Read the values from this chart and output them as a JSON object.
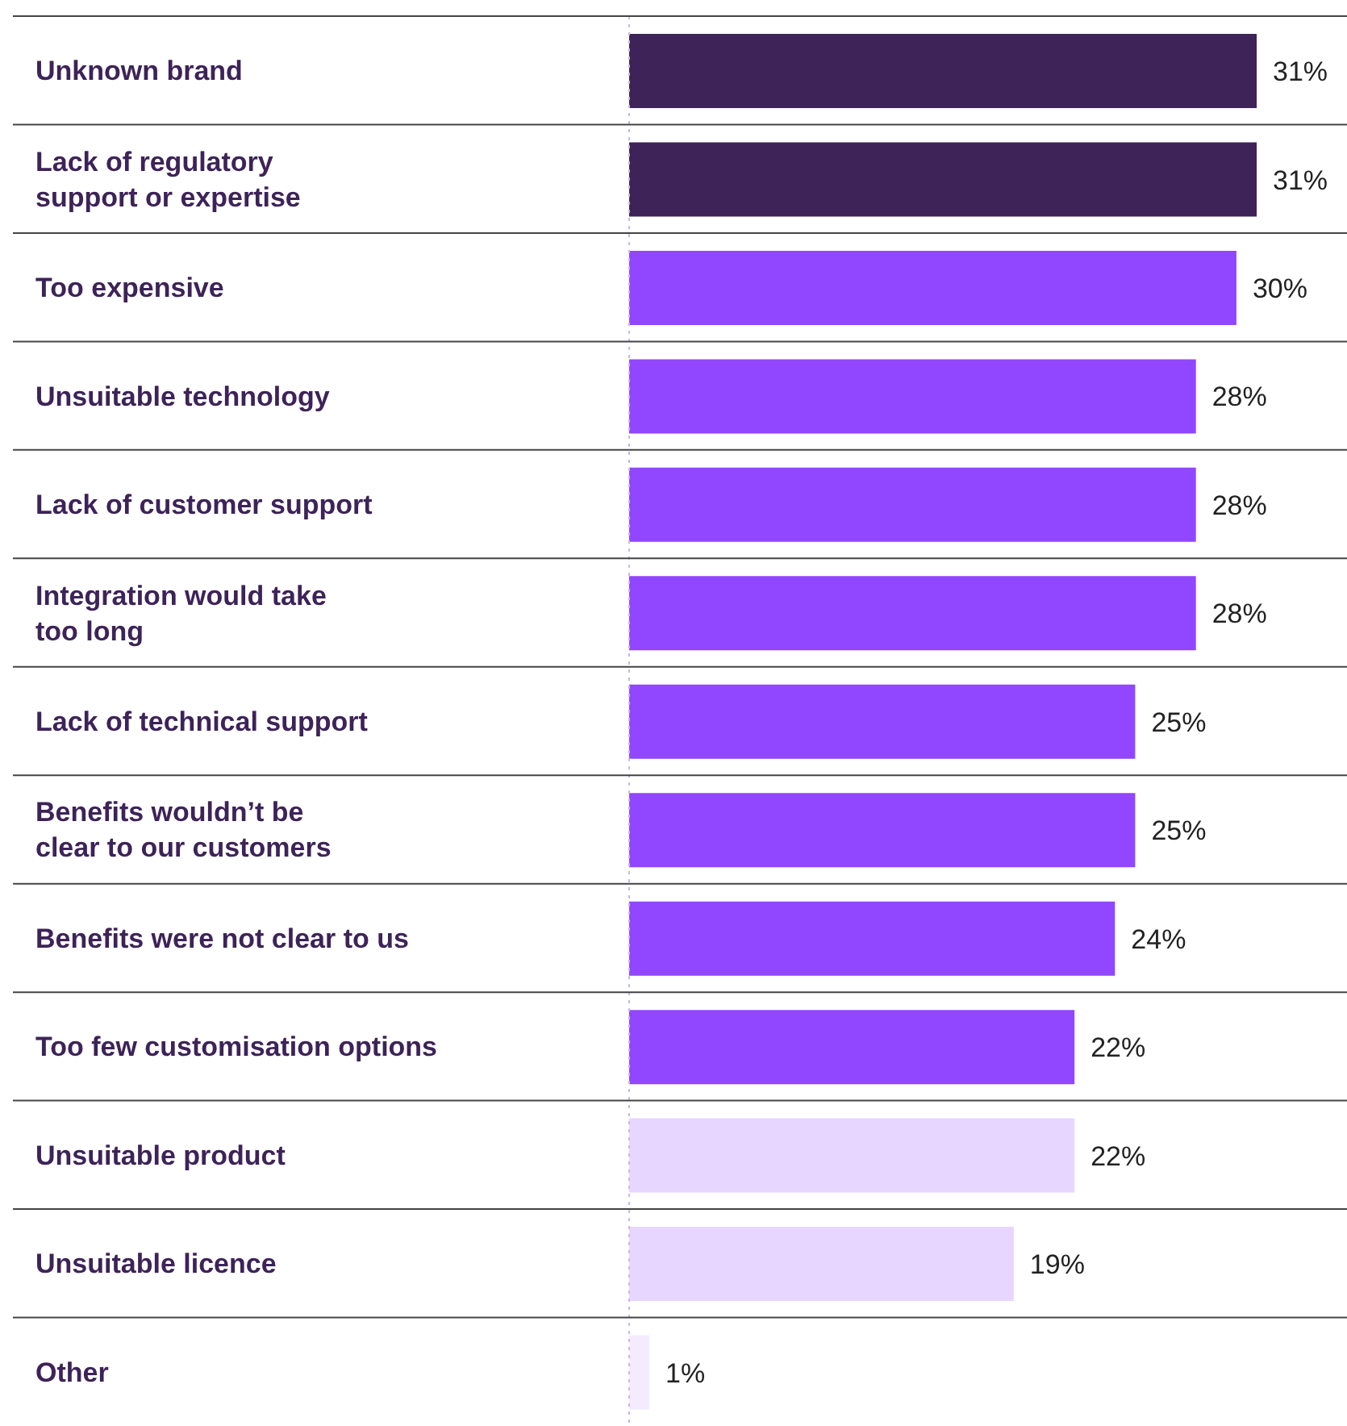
{
  "chart_data": {
    "type": "bar",
    "orientation": "horizontal",
    "categories": [
      "Unknown brand",
      "Lack of regulatory\nsupport or expertise",
      "Too expensive",
      "Unsuitable technology",
      "Lack of customer support",
      "Integration would take\ntoo long",
      "Lack of technical support",
      "Benefits wouldn’t be\nclear to our customers",
      "Benefits were not clear to us",
      "Too few customisation options",
      "Unsuitable product",
      "Unsuitable licence",
      "Other"
    ],
    "values": [
      31,
      31,
      30,
      28,
      28,
      28,
      25,
      25,
      24,
      22,
      22,
      19,
      1
    ],
    "value_labels": [
      "31%",
      "31%",
      "30%",
      "28%",
      "28%",
      "28%",
      "25%",
      "25%",
      "24%",
      "22%",
      "22%",
      "19%",
      "1%"
    ],
    "colors": [
      "#3d2358",
      "#3d2358",
      "#9146ff",
      "#9146ff",
      "#9146ff",
      "#9146ff",
      "#9146ff",
      "#9146ff",
      "#9146ff",
      "#9146ff",
      "#e7d6ff",
      "#e7d6ff",
      "#f4ebff"
    ]
  }
}
